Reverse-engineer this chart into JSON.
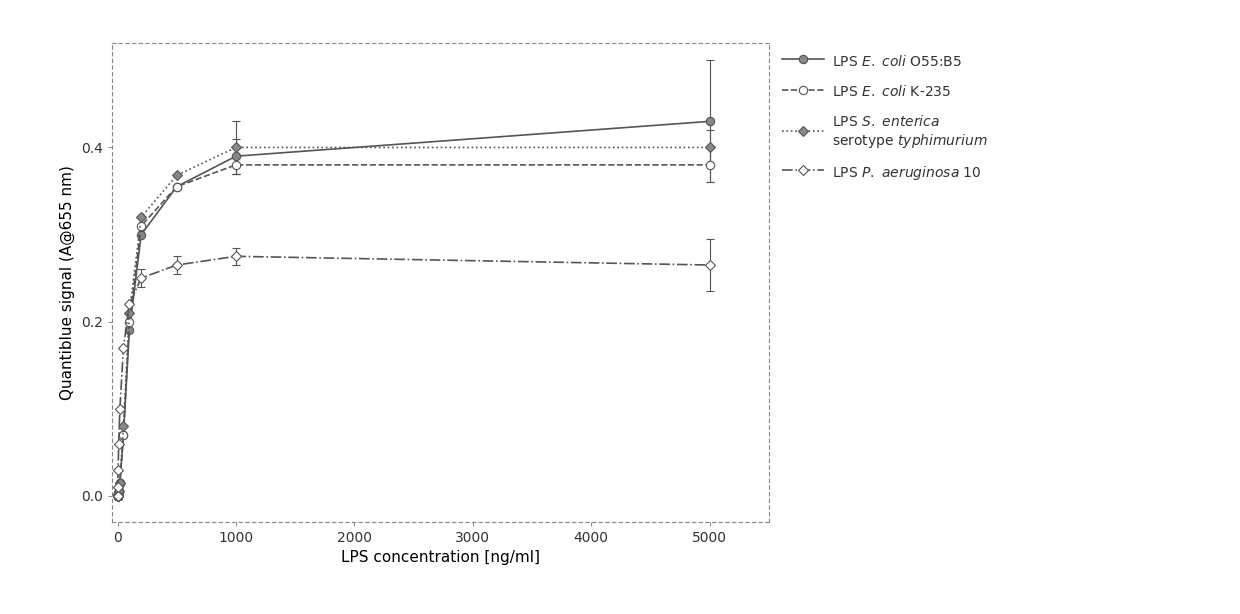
{
  "xlabel": "LPS concentration [ng/ml]",
  "ylabel": "Quantiblue signal (A@655 nm)",
  "xlim": [
    -50,
    5500
  ],
  "ylim": [
    -0.03,
    0.52
  ],
  "yticks": [
    0.0,
    0.2,
    0.4
  ],
  "ytick_labels": [
    "0.0",
    "0.2",
    "0.4"
  ],
  "xticks": [
    0,
    1000,
    2000,
    3000,
    4000,
    5000
  ],
  "xtick_labels": [
    "0",
    "1000",
    "2000",
    "3000",
    "4000",
    "5000"
  ],
  "background_color": "#ffffff",
  "figsize": [
    12.4,
    6.14
  ],
  "dpi": 100,
  "series": [
    {
      "legend_label": "LPS $\\it{E.\\ coli}$ O55:B5",
      "x": [
        0,
        0.01,
        0.02,
        0.05,
        0.1,
        0.2,
        0.5,
        1,
        2,
        5,
        10,
        20,
        50,
        100,
        200,
        500,
        1000,
        5000
      ],
      "y": [
        0.0,
        0.0,
        0.0,
        0.0,
        0.0,
        0.0,
        0.0,
        0.0,
        0.0,
        0.002,
        0.005,
        0.015,
        0.07,
        0.19,
        0.3,
        0.355,
        0.39,
        0.43
      ],
      "yerr": [
        0.0,
        0.0,
        0.0,
        0.0,
        0.0,
        0.0,
        0.0,
        0.0,
        0.0,
        0.0,
        0.0,
        0.0,
        0.0,
        0.0,
        0.0,
        0.0,
        0.02,
        0.07
      ],
      "linestyle": "-",
      "marker": "o",
      "markerfacecolor": "#888888",
      "color": "#555555",
      "markersize": 6,
      "linewidth": 1.2
    },
    {
      "legend_label": "LPS $\\it{E.\\ coli}$ K-235",
      "x": [
        0,
        0.01,
        0.02,
        0.05,
        0.1,
        0.2,
        0.5,
        1,
        2,
        5,
        10,
        20,
        50,
        100,
        200,
        500,
        1000,
        5000
      ],
      "y": [
        0.0,
        0.0,
        0.0,
        0.0,
        0.0,
        0.0,
        0.0,
        0.0,
        0.0,
        0.002,
        0.005,
        0.015,
        0.07,
        0.2,
        0.31,
        0.355,
        0.38,
        0.38
      ],
      "yerr": [
        0.0,
        0.0,
        0.0,
        0.0,
        0.0,
        0.0,
        0.0,
        0.0,
        0.0,
        0.0,
        0.0,
        0.0,
        0.0,
        0.0,
        0.0,
        0.0,
        0.01,
        0.02
      ],
      "linestyle": "--",
      "marker": "o",
      "markerfacecolor": "#ffffff",
      "color": "#555555",
      "markersize": 6,
      "linewidth": 1.2
    },
    {
      "legend_label": "LPS $\\it{S.\\ enterica}$\nserotype $\\it{typhimurium}$",
      "x": [
        0,
        0.01,
        0.02,
        0.05,
        0.1,
        0.2,
        0.5,
        1,
        2,
        5,
        10,
        20,
        50,
        100,
        200,
        500,
        1000,
        5000
      ],
      "y": [
        0.0,
        0.0,
        0.0,
        0.0,
        0.0,
        0.0,
        0.0,
        0.0,
        0.0,
        0.002,
        0.005,
        0.015,
        0.08,
        0.21,
        0.32,
        0.368,
        0.4,
        0.4
      ],
      "yerr": [
        0.0,
        0.0,
        0.0,
        0.0,
        0.0,
        0.0,
        0.0,
        0.0,
        0.0,
        0.0,
        0.0,
        0.0,
        0.0,
        0.0,
        0.0,
        0.0,
        0.03,
        0.02
      ],
      "linestyle": ":",
      "marker": "D",
      "markerfacecolor": "#888888",
      "color": "#555555",
      "markersize": 5,
      "linewidth": 1.2
    },
    {
      "legend_label": "LPS $\\it{P.\\ aeruginosa}$ 10",
      "x": [
        0,
        0.01,
        0.02,
        0.05,
        0.1,
        0.2,
        0.5,
        1,
        2,
        5,
        10,
        20,
        50,
        100,
        200,
        500,
        1000,
        5000
      ],
      "y": [
        0.0,
        0.0,
        0.0,
        0.0,
        0.0,
        0.0,
        0.0,
        0.0,
        0.01,
        0.03,
        0.06,
        0.1,
        0.17,
        0.22,
        0.25,
        0.265,
        0.275,
        0.265
      ],
      "yerr": [
        0.0,
        0.0,
        0.0,
        0.0,
        0.0,
        0.0,
        0.0,
        0.0,
        0.0,
        0.0,
        0.0,
        0.0,
        0.0,
        0.0,
        0.01,
        0.01,
        0.01,
        0.03
      ],
      "linestyle": "-.",
      "marker": "D",
      "markerfacecolor": "#ffffff",
      "color": "#555555",
      "markersize": 5,
      "linewidth": 1.2
    }
  ],
  "legend_fontsize": 10,
  "tick_fontsize": 10,
  "label_fontsize": 11,
  "axis_color": "#888888",
  "spine_linestyle": "dotted"
}
